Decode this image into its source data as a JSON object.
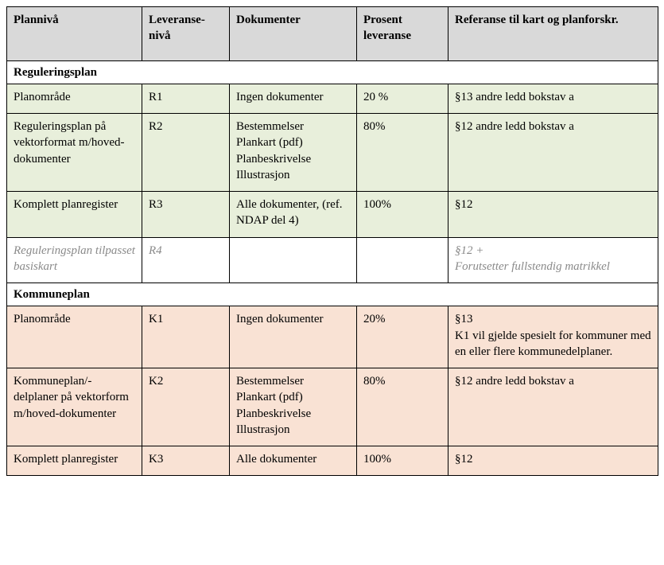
{
  "headers": {
    "c1": "Plannivå",
    "c2": "Leveranse-\nnivå",
    "c3": "Dokumenter",
    "c4": "Prosent leveranse",
    "c5": "Referanse til kart og planforskr."
  },
  "sections": {
    "reguleringsplan": "Reguleringsplan",
    "kommuneplan": "Kommuneplan"
  },
  "rows": {
    "r1": {
      "plannivaa": "Planområde",
      "lev": "R1",
      "dok": "Ingen  dokumenter",
      "prosent": "20 %",
      "ref": "§13 andre ledd bokstav a"
    },
    "r2": {
      "plannivaa": "Reguleringsplan på vektorformat m/hoved-dokumenter",
      "lev": "R2",
      "dok": "Bestemmelser\nPlankart (pdf)\nPlanbeskrivelse\nIllustrasjon",
      "prosent": "80%",
      "ref": "§12 andre ledd bokstav a"
    },
    "r3": {
      "plannivaa": "Komplett planregister",
      "lev": "R3",
      "dok": "Alle dokumenter, (ref. NDAP del 4)",
      "prosent": "100%",
      "ref": "§12"
    },
    "r4": {
      "plannivaa": "Reguleringsplan tilpasset basiskart",
      "lev": "R4",
      "dok": "",
      "prosent": "",
      "ref": "§12 +\nForutsetter fullstendig matrikkel"
    },
    "k1": {
      "plannivaa": "Planområde",
      "lev": "K1",
      "dok": "Ingen  dokumenter",
      "prosent": "20%",
      "ref": "§13\nK1 vil gjelde spesielt for kommuner  med en eller flere kommunedelplaner."
    },
    "k2": {
      "plannivaa": "Kommuneplan/-delplaner på vektorform m/hoved-dokumenter",
      "lev": "K2",
      "dok": "Bestemmelser\nPlankart (pdf)\nPlanbeskrivelse\nIllustrasjon",
      "prosent": "80%",
      "ref": "§12 andre ledd bokstav a"
    },
    "k3": {
      "plannivaa": "Komplett planregister",
      "lev": "K3",
      "dok": "Alle dokumenter",
      "prosent": "100%",
      "ref": "§12"
    }
  }
}
